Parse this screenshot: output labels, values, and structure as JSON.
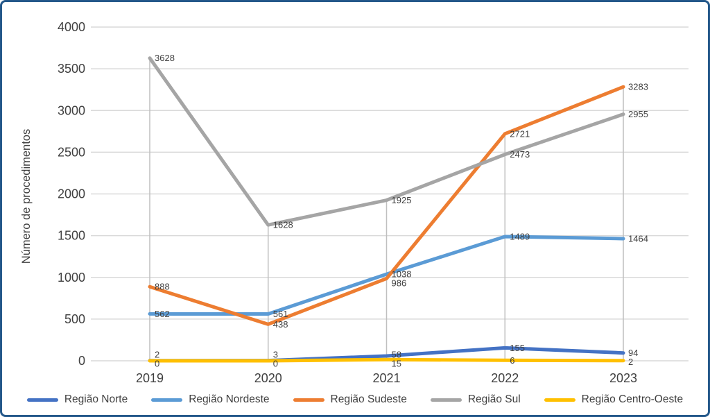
{
  "frame": {
    "border_color": "#24588A",
    "background": "#FFFFFF"
  },
  "chart_data": {
    "type": "line",
    "title": "",
    "xlabel": "",
    "ylabel": "Número de procedimentos",
    "categories": [
      "2019",
      "2020",
      "2021",
      "2022",
      "2023"
    ],
    "yticks": [
      0,
      500,
      1000,
      1500,
      2000,
      2500,
      3000,
      3500,
      4000
    ],
    "ylim": [
      0,
      4000
    ],
    "grid": "horizontal",
    "drop_lines": true,
    "data_labels": true,
    "legend_position": "bottom",
    "series": [
      {
        "name": "Região Norte",
        "color": "#4472C4",
        "values": [
          2,
          3,
          58,
          155,
          94
        ]
      },
      {
        "name": "Região Nordeste",
        "color": "#5B9BD5",
        "values": [
          562,
          561,
          1038,
          1489,
          1464
        ]
      },
      {
        "name": "Região Sudeste",
        "color": "#ED7D31",
        "values": [
          888,
          438,
          986,
          2721,
          3283
        ]
      },
      {
        "name": "Região Sul",
        "color": "#A5A5A5",
        "values": [
          3628,
          1628,
          1925,
          2473,
          2955
        ]
      },
      {
        "name": "Região Centro-Oeste",
        "color": "#FFC000",
        "values": [
          0,
          0,
          15,
          6,
          2
        ]
      }
    ],
    "styles": {
      "gridline_color": "#D9D9D9",
      "drop_line_color": "#BFBFBF",
      "axis_text_color": "#404040",
      "data_label_color": "#404040"
    }
  }
}
